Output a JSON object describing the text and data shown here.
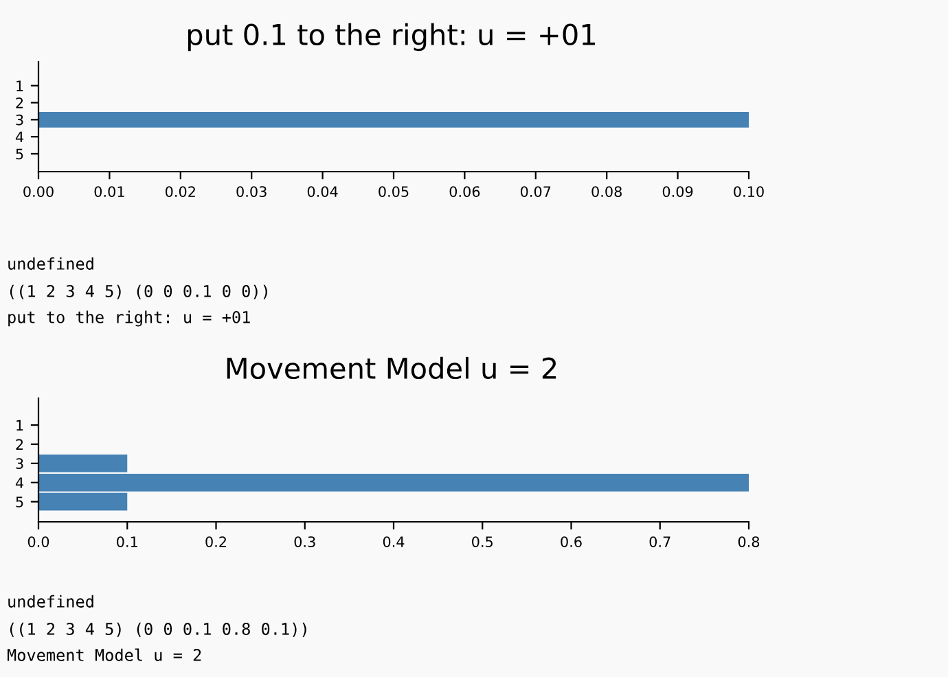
{
  "chart_data": [
    {
      "type": "bar",
      "orientation": "horizontal",
      "title": "put 0.1 to the right: u = +01",
      "categories": [
        "1",
        "2",
        "3",
        "4",
        "5"
      ],
      "values": [
        0,
        0,
        0.1,
        0,
        0
      ],
      "color": "#4682b4",
      "xlim": [
        0,
        0.1
      ],
      "xticks": [
        {
          "value": 0,
          "label": "0.00"
        },
        {
          "value": 0.01,
          "label": "0.01"
        },
        {
          "value": 0.02,
          "label": "0.02"
        },
        {
          "value": 0.03,
          "label": "0.03"
        },
        {
          "value": 0.04,
          "label": "0.04"
        },
        {
          "value": 0.05,
          "label": "0.05"
        },
        {
          "value": 0.06,
          "label": "0.06"
        },
        {
          "value": 0.07,
          "label": "0.07"
        },
        {
          "value": 0.08,
          "label": "0.08"
        },
        {
          "value": 0.09,
          "label": "0.09"
        },
        {
          "value": 0.1,
          "label": "0.10"
        }
      ],
      "grid": false,
      "legend": false,
      "annotations": [
        "undefined",
        "((1 2 3 4 5) (0 0 0.1 0 0))",
        "put to the right: u = +01"
      ]
    },
    {
      "type": "bar",
      "orientation": "horizontal",
      "title": "Movement Model u = 2",
      "categories": [
        "1",
        "2",
        "3",
        "4",
        "5"
      ],
      "values": [
        0,
        0,
        0.1,
        0.8,
        0.1
      ],
      "color": "#4682b4",
      "xlim": [
        0,
        0.8
      ],
      "xticks": [
        {
          "value": 0,
          "label": "0.0"
        },
        {
          "value": 0.1,
          "label": "0.1"
        },
        {
          "value": 0.2,
          "label": "0.2"
        },
        {
          "value": 0.3,
          "label": "0.3"
        },
        {
          "value": 0.4,
          "label": "0.4"
        },
        {
          "value": 0.5,
          "label": "0.5"
        },
        {
          "value": 0.6,
          "label": "0.6"
        },
        {
          "value": 0.7,
          "label": "0.7"
        },
        {
          "value": 0.8,
          "label": "0.8"
        }
      ],
      "grid": false,
      "legend": false,
      "annotations": [
        "undefined",
        "((1 2 3 4 5) (0 0 0.1 0.8 0.1))",
        "Movement Model u = 2"
      ]
    }
  ]
}
